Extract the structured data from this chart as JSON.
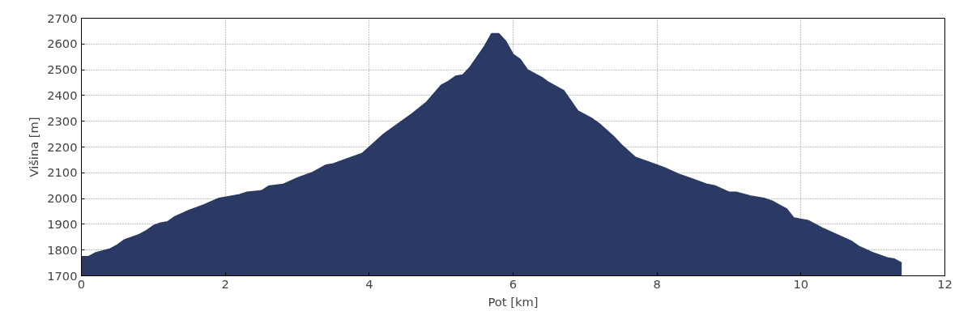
{
  "chart_data": {
    "type": "area",
    "xlabel": "Pot [km]",
    "ylabel": "Višina [m]",
    "x": [
      0,
      0.1,
      0.2,
      0.4,
      0.5,
      0.6,
      0.8,
      0.9,
      1.0,
      1.1,
      1.2,
      1.3,
      1.5,
      1.7,
      1.9,
      2.2,
      2.3,
      2.5,
      2.6,
      2.8,
      3.0,
      3.2,
      3.4,
      3.5,
      3.7,
      3.9,
      4.0,
      4.2,
      4.4,
      4.6,
      4.8,
      5.0,
      5.1,
      5.2,
      5.3,
      5.4,
      5.6,
      5.7,
      5.8,
      5.9,
      6.0,
      6.1,
      6.2,
      6.4,
      6.5,
      6.7,
      6.8,
      6.9,
      7.1,
      7.2,
      7.4,
      7.5,
      7.7,
      7.9,
      8.1,
      8.3,
      8.5,
      8.7,
      8.8,
      9.0,
      9.1,
      9.3,
      9.5,
      9.6,
      9.7,
      9.8,
      9.9,
      10.1,
      10.2,
      10.3,
      10.5,
      10.7,
      10.8,
      11.0,
      11.2,
      11.3,
      11.4
    ],
    "series": [
      {
        "color": "#2b3a64",
        "values": [
          1775,
          1775,
          1790,
          1805,
          1820,
          1840,
          1860,
          1875,
          1895,
          1905,
          1910,
          1930,
          1955,
          1975,
          2000,
          2015,
          2025,
          2030,
          2048,
          2055,
          2080,
          2100,
          2130,
          2135,
          2155,
          2175,
          2200,
          2250,
          2290,
          2330,
          2375,
          2440,
          2455,
          2475,
          2480,
          2510,
          2590,
          2640,
          2640,
          2610,
          2560,
          2540,
          2500,
          2470,
          2450,
          2420,
          2380,
          2340,
          2310,
          2290,
          2240,
          2210,
          2160,
          2140,
          2120,
          2095,
          2075,
          2055,
          2050,
          2025,
          2025,
          2010,
          2000,
          1990,
          1975,
          1960,
          1925,
          1915,
          1900,
          1885,
          1860,
          1835,
          1815,
          1790,
          1770,
          1765,
          1750
        ]
      }
    ],
    "xlim": [
      0,
      12
    ],
    "xticks": [
      0,
      2,
      4,
      6,
      8,
      10,
      12
    ],
    "ylim": [
      1700,
      2700
    ],
    "yticks": [
      1700,
      1800,
      1900,
      2000,
      2100,
      2200,
      2300,
      2400,
      2500,
      2600,
      2700
    ],
    "grid": true
  }
}
